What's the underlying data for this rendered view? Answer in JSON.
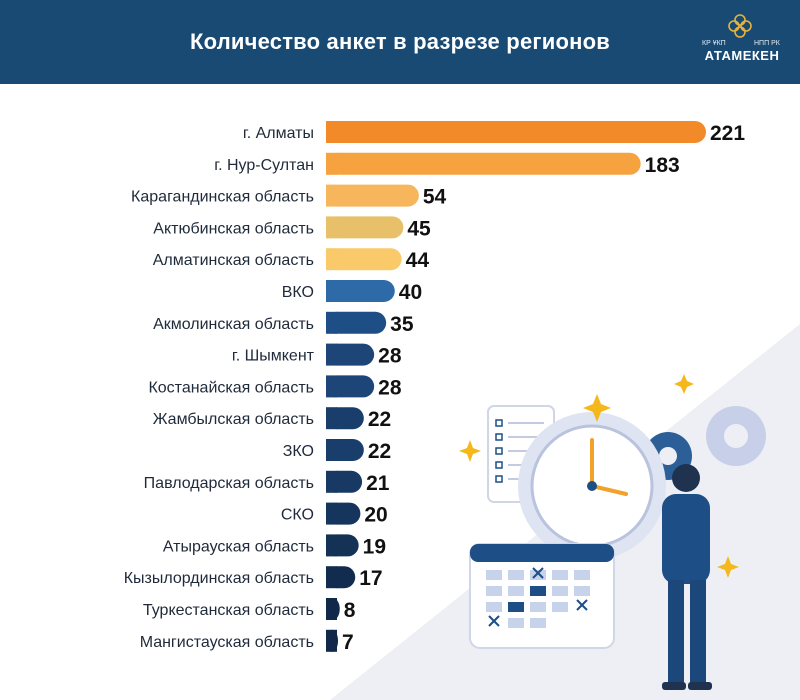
{
  "header": {
    "title": "Количество анкет в разрезе регионов",
    "logo": {
      "small_left": "КР ҰКП",
      "small_right": "НПП РК",
      "name": "АТАМЕКЕН"
    }
  },
  "colors": {
    "header_bg": "#184a73",
    "orange_dark": "#f28a2a",
    "orange": "#f6a23f",
    "orange_light": "#f8b65c",
    "gold": "#e8c06a",
    "yellow": "#f9c96a",
    "blue": "#2e6aa8",
    "navy": "#1d4f86",
    "dark_navy": "#10284a"
  },
  "chart_data": {
    "type": "bar",
    "orientation": "horizontal",
    "title": "Количество анкет в разрезе регионов",
    "categories": [
      "г. Алматы",
      "г. Нур-Султан",
      "Карагандинская область",
      "Актюбинская область",
      "Алматинская область",
      "ВКО",
      "Акмолинская область",
      "г. Шымкент",
      "Костанайская область",
      "Жамбылская область",
      "ЗКО",
      "Павлодарская область",
      "СКО",
      "Атырауская область",
      "Кызылординская область",
      "Туркестанская область",
      "Мангистауская область"
    ],
    "values": [
      221,
      183,
      54,
      45,
      44,
      40,
      35,
      28,
      28,
      22,
      22,
      21,
      20,
      19,
      17,
      8,
      7
    ],
    "data_labels": [
      "221",
      "183",
      "54",
      "45",
      "44",
      "40",
      "35",
      "28",
      "28",
      "22",
      "22",
      "21",
      "20",
      "19",
      "17",
      "8",
      "7"
    ],
    "bar_colors": [
      "#f28a2a",
      "#f6a23f",
      "#f8b65c",
      "#e8c06a",
      "#f9c96a",
      "#2e6aa8",
      "#1d4f86",
      "#1d4577",
      "#1d4577",
      "#1a3e6c",
      "#1a3e6c",
      "#173963",
      "#16355c",
      "#143156",
      "#122c4f",
      "#10284a",
      "#10284a"
    ],
    "xlim": [
      0,
      221
    ],
    "grid": false,
    "legend": "none"
  }
}
